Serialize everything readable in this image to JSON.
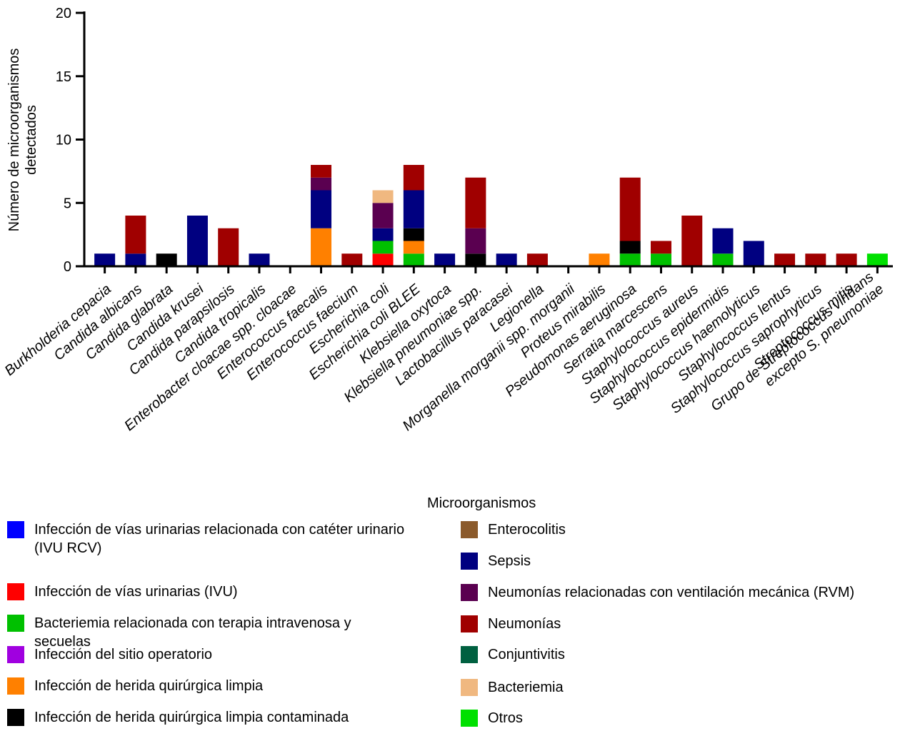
{
  "chart_data": {
    "type": "bar",
    "stacked": true,
    "y_label": "Número de microorganismos\ndetectados",
    "legend_title": "Microorganismos",
    "categories": [
      "Burkholderia cepacia",
      "Candida albicans",
      "Candida glabrata",
      "Candida krusei",
      "Candida parapsilosis",
      "Candida tropicalis",
      "Enterobacter cloacae spp. cloacae",
      "Enterococcus faecalis",
      "Enterococcus faecium",
      "Escherichia coli",
      "Escherichia coli BLEE",
      "Klebsiella oxytoca",
      "Klebsiella pneumoniae spp.",
      "Lactobacillus paracasei",
      "Legionella",
      "Morganella morganii spp. morganii",
      "Proteus mirabilis",
      "Pseudomonas aeruginosa",
      "Serratia marcescens",
      "Staphylococcus aureus",
      "Staphylococcus epidermidis",
      "Staphylococcus haemolyticus",
      "Staphylococcus lentus",
      "Staphylococcus saprophyticus",
      "Streptococcus mitis",
      "Grupo de Streptococcus viridans\nexcepto S. pneumoniae"
    ],
    "ylim": [
      0,
      20
    ],
    "yticks": [
      0,
      5,
      10,
      15,
      20
    ],
    "series": [
      {
        "name": "Infección de vías urinarias relacionada con catéter urinario (IVU RCV)",
        "color": "#0000ff",
        "values": [
          0,
          0,
          0,
          0,
          0,
          0,
          0,
          0,
          0,
          0,
          0,
          0,
          0,
          0,
          0,
          0,
          0,
          0,
          0,
          0,
          0,
          0,
          0,
          0,
          0,
          0
        ]
      },
      {
        "name": "Infección de vías urinarias (IVU)",
        "color": "#ff0000",
        "values": [
          0,
          0,
          0,
          0,
          0,
          0,
          0,
          0,
          0,
          1,
          0,
          0,
          0,
          0,
          0,
          0,
          0,
          0,
          0,
          0,
          0,
          0,
          0,
          0,
          0,
          0
        ]
      },
      {
        "name": "Bacteriemia relacionada con terapia intravenosa y secuelas",
        "color": "#00c000",
        "values": [
          0,
          0,
          0,
          0,
          0,
          0,
          0,
          0,
          0,
          1,
          1,
          0,
          0,
          0,
          0,
          0,
          0,
          1,
          1,
          0,
          1,
          0,
          0,
          0,
          0,
          0
        ]
      },
      {
        "name": "Infección del sitio operatorio",
        "color": "#a000e0",
        "values": [
          0,
          0,
          0,
          0,
          0,
          0,
          0,
          0,
          0,
          0,
          0,
          0,
          0,
          0,
          0,
          0,
          0,
          0,
          0,
          0,
          0,
          0,
          0,
          0,
          0,
          0
        ]
      },
      {
        "name": "Infección de herida quirúrgica limpia",
        "color": "#ff8000",
        "values": [
          0,
          0,
          0,
          0,
          0,
          0,
          0,
          3,
          0,
          0,
          1,
          0,
          0,
          0,
          0,
          0,
          1,
          0,
          0,
          0,
          0,
          0,
          0,
          0,
          0,
          0
        ]
      },
      {
        "name": "Infección de herida quirúrgica limpia contaminada",
        "color": "#000000",
        "values": [
          0,
          0,
          1,
          0,
          0,
          0,
          0,
          0,
          0,
          0,
          1,
          0,
          1,
          0,
          0,
          0,
          0,
          1,
          0,
          0,
          0,
          0,
          0,
          0,
          0,
          0
        ]
      },
      {
        "name": "Enterocolitis",
        "color": "#8b5a2b",
        "values": [
          0,
          0,
          0,
          0,
          0,
          0,
          0,
          0,
          0,
          0,
          0,
          0,
          0,
          0,
          0,
          0,
          0,
          0,
          0,
          0,
          0,
          0,
          0,
          0,
          0,
          0
        ]
      },
      {
        "name": "Sepsis",
        "color": "#000080",
        "values": [
          1,
          1,
          0,
          4,
          0,
          1,
          0,
          3,
          0,
          1,
          3,
          1,
          0,
          1,
          0,
          0,
          0,
          0,
          0,
          0,
          2,
          2,
          0,
          0,
          0,
          0
        ]
      },
      {
        "name": "Neumonías relacionadas con ventilación mecánica (RVM)",
        "color": "#5a0050",
        "values": [
          0,
          0,
          0,
          0,
          0,
          0,
          0,
          1,
          0,
          2,
          0,
          0,
          2,
          0,
          0,
          0,
          0,
          0,
          0,
          0,
          0,
          0,
          0,
          0,
          0,
          0
        ]
      },
      {
        "name": "Neumonías",
        "color": "#a00000",
        "values": [
          0,
          3,
          0,
          0,
          3,
          0,
          0,
          1,
          1,
          0,
          2,
          0,
          4,
          0,
          1,
          0,
          0,
          5,
          1,
          4,
          0,
          0,
          1,
          1,
          1,
          0
        ]
      },
      {
        "name": "Conjuntivitis",
        "color": "#006040",
        "values": [
          0,
          0,
          0,
          0,
          0,
          0,
          0,
          0,
          0,
          0,
          0,
          0,
          0,
          0,
          0,
          0,
          0,
          0,
          0,
          0,
          0,
          0,
          0,
          0,
          0,
          0
        ]
      },
      {
        "name": "Bacteriemia",
        "color": "#f0b880",
        "values": [
          0,
          0,
          0,
          0,
          0,
          0,
          0,
          0,
          0,
          1,
          0,
          0,
          0,
          0,
          0,
          0,
          0,
          0,
          0,
          0,
          0,
          0,
          0,
          0,
          0,
          0
        ]
      },
      {
        "name": "Otros",
        "color": "#00e000",
        "values": [
          0,
          0,
          0,
          0,
          0,
          0,
          0,
          0,
          0,
          0,
          0,
          0,
          0,
          0,
          0,
          0,
          0,
          0,
          0,
          0,
          0,
          0,
          0,
          0,
          0,
          1
        ]
      }
    ]
  }
}
